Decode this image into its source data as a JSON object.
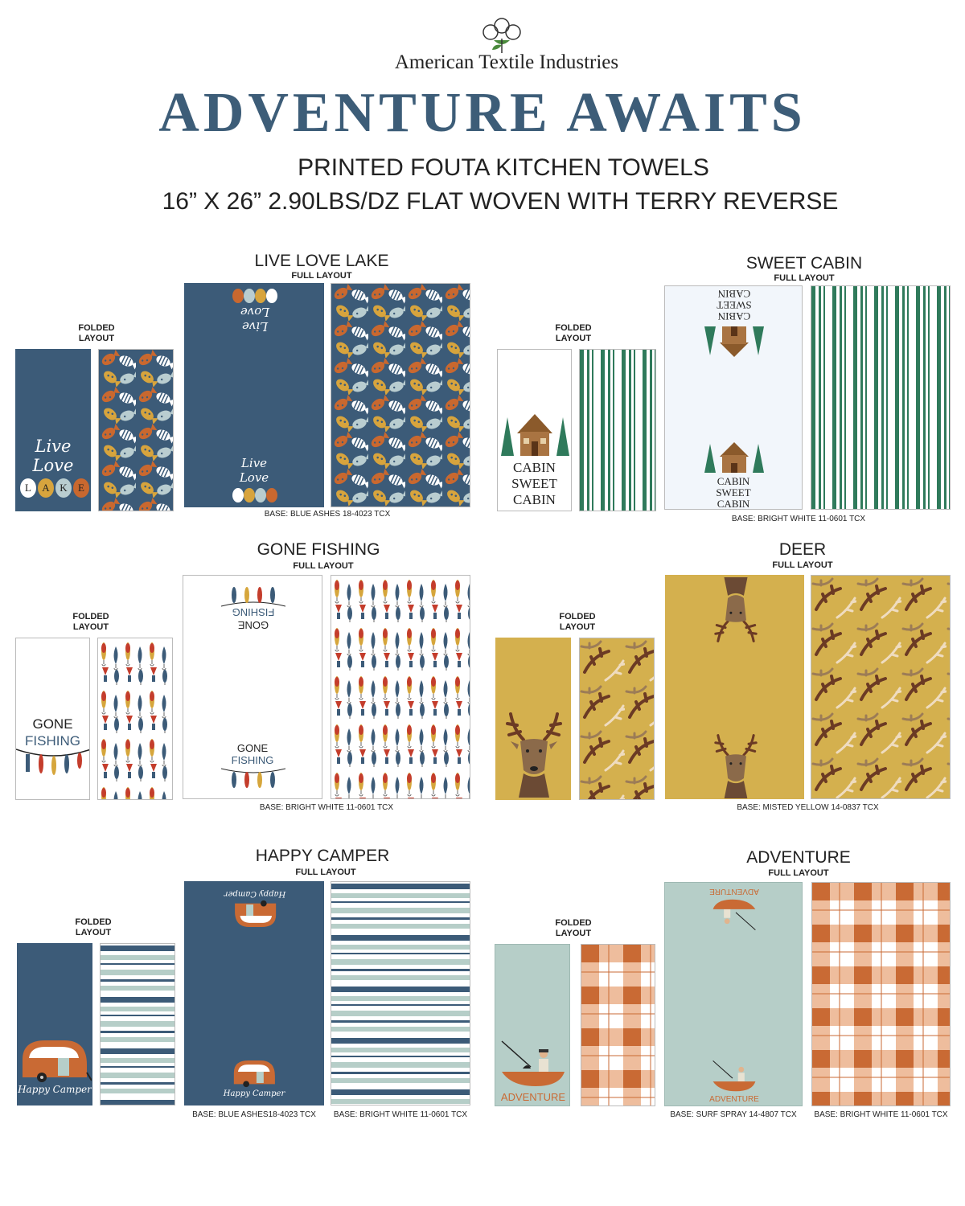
{
  "header": {
    "brand": "American Textile Industries",
    "title": "ADVENTURE AWAITS",
    "subtitle_line1": "PRINTED FOUTA KITCHEN TOWELS",
    "subtitle_line2": "16” X 26” 2.90LBS/DZ FLAT WOVEN WITH TERRY REVERSE"
  },
  "labels": {
    "full_layout": "FULL LAYOUT",
    "folded_line1": "FOLDED",
    "folded_line2": "LAYOUT"
  },
  "sections": {
    "lake": {
      "title": "LIVE LOVE LAKE",
      "base": "BASE: BLUE ASHES 18-4023 TCX",
      "art_line1": "Live",
      "art_line2": "Love",
      "art_letters": [
        "L",
        "A",
        "K",
        "E"
      ]
    },
    "cabin": {
      "title": "SWEET CABIN",
      "base": "BASE: BRIGHT WHITE 11-0601 TCX",
      "art_line1": "CABIN",
      "art_line2": "SWEET",
      "art_line3": "CABIN"
    },
    "fishing": {
      "title": "GONE FISHING",
      "base": "BASE: BRIGHT WHITE 11-0601 TCX",
      "art_line1": "GONE",
      "art_line2": "FISHING"
    },
    "deer": {
      "title": "DEER",
      "base": "BASE: MISTED YELLOW 14-0837 TCX"
    },
    "camper": {
      "title": "HAPPY CAMPER",
      "base_full": "BASE: BLUE ASHES18-4023 TCX",
      "base_reverse": "BASE: BRIGHT WHITE 11-0601 TCX",
      "art_text": "Happy Camper"
    },
    "adventure": {
      "title": "ADVENTURE",
      "base_full": "BASE: SURF SPRAY 14-4807 TCX",
      "base_reverse": "BASE: BRIGHT WHITE 11-0601 TCX",
      "art_text": "ADVENTURE"
    }
  },
  "colors": {
    "title_blue": "#3d5d78",
    "blue_ashes": "#3c5b78",
    "misted_yellow": "#d4b04e",
    "surf_spray": "#b6cec8",
    "cabin_green": "#2f7a5b",
    "accent_orange": "#c96a34"
  },
  "icons": [
    "cotton-logo-icon",
    "fish-icon",
    "cabin-icon",
    "pine-tree-icon",
    "fishing-lure-icon",
    "deer-head-icon",
    "antler-icon",
    "camper-icon",
    "canoe-fisherman-icon"
  ]
}
